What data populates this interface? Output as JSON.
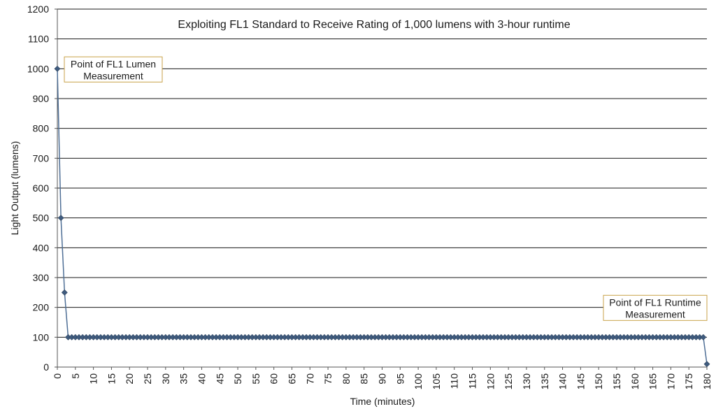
{
  "chart_data": {
    "type": "line",
    "title": "Exploiting FL1 Standard to Receive Rating of 1,000 lumens with 3-hour runtime",
    "xlabel": "Time (minutes)",
    "ylabel": "Light Output  (lumens)",
    "xlim": [
      0,
      180
    ],
    "ylim": [
      0,
      1200
    ],
    "x_tick_step": 5,
    "y_tick_step": 100,
    "grid": "horizontal",
    "legend": "none",
    "series_color": "#4f6f96",
    "marker_color": "#3f5b7e",
    "series": [
      {
        "x": [
          0,
          1,
          2,
          3,
          4,
          5,
          6,
          7,
          8,
          9,
          10,
          11,
          12,
          13,
          14,
          15,
          16,
          17,
          18,
          19,
          20,
          21,
          22,
          23,
          24,
          25,
          26,
          27,
          28,
          29,
          30,
          31,
          32,
          33,
          34,
          35,
          36,
          37,
          38,
          39,
          40,
          41,
          42,
          43,
          44,
          45,
          46,
          47,
          48,
          49,
          50,
          51,
          52,
          53,
          54,
          55,
          56,
          57,
          58,
          59,
          60,
          61,
          62,
          63,
          64,
          65,
          66,
          67,
          68,
          69,
          70,
          71,
          72,
          73,
          74,
          75,
          76,
          77,
          78,
          79,
          80,
          81,
          82,
          83,
          84,
          85,
          86,
          87,
          88,
          89,
          90,
          91,
          92,
          93,
          94,
          95,
          96,
          97,
          98,
          99,
          100,
          101,
          102,
          103,
          104,
          105,
          106,
          107,
          108,
          109,
          110,
          111,
          112,
          113,
          114,
          115,
          116,
          117,
          118,
          119,
          120,
          121,
          122,
          123,
          124,
          125,
          126,
          127,
          128,
          129,
          130,
          131,
          132,
          133,
          134,
          135,
          136,
          137,
          138,
          139,
          140,
          141,
          142,
          143,
          144,
          145,
          146,
          147,
          148,
          149,
          150,
          151,
          152,
          153,
          154,
          155,
          156,
          157,
          158,
          159,
          160,
          161,
          162,
          163,
          164,
          165,
          166,
          167,
          168,
          169,
          170,
          171,
          172,
          173,
          174,
          175,
          176,
          177,
          178,
          179,
          180
        ],
        "values": [
          1000,
          500,
          250,
          100,
          100,
          100,
          100,
          100,
          100,
          100,
          100,
          100,
          100,
          100,
          100,
          100,
          100,
          100,
          100,
          100,
          100,
          100,
          100,
          100,
          100,
          100,
          100,
          100,
          100,
          100,
          100,
          100,
          100,
          100,
          100,
          100,
          100,
          100,
          100,
          100,
          100,
          100,
          100,
          100,
          100,
          100,
          100,
          100,
          100,
          100,
          100,
          100,
          100,
          100,
          100,
          100,
          100,
          100,
          100,
          100,
          100,
          100,
          100,
          100,
          100,
          100,
          100,
          100,
          100,
          100,
          100,
          100,
          100,
          100,
          100,
          100,
          100,
          100,
          100,
          100,
          100,
          100,
          100,
          100,
          100,
          100,
          100,
          100,
          100,
          100,
          100,
          100,
          100,
          100,
          100,
          100,
          100,
          100,
          100,
          100,
          100,
          100,
          100,
          100,
          100,
          100,
          100,
          100,
          100,
          100,
          100,
          100,
          100,
          100,
          100,
          100,
          100,
          100,
          100,
          100,
          100,
          100,
          100,
          100,
          100,
          100,
          100,
          100,
          100,
          100,
          100,
          100,
          100,
          100,
          100,
          100,
          100,
          100,
          100,
          100,
          100,
          100,
          100,
          100,
          100,
          100,
          100,
          100,
          100,
          100,
          100,
          100,
          100,
          100,
          100,
          100,
          100,
          100,
          100,
          100,
          100,
          100,
          100,
          100,
          100,
          100,
          100,
          100,
          100,
          100,
          100,
          100,
          100,
          100,
          100,
          100,
          100,
          100,
          100,
          100,
          10
        ]
      }
    ],
    "annotations": [
      {
        "lines": [
          "Point of FL1 Lumen",
          "Measurement"
        ],
        "at_x": 0,
        "at_y": 1000
      },
      {
        "lines": [
          "Point of FL1 Runtime",
          "Measurement"
        ],
        "at_x": 180,
        "at_y": 100
      }
    ]
  }
}
